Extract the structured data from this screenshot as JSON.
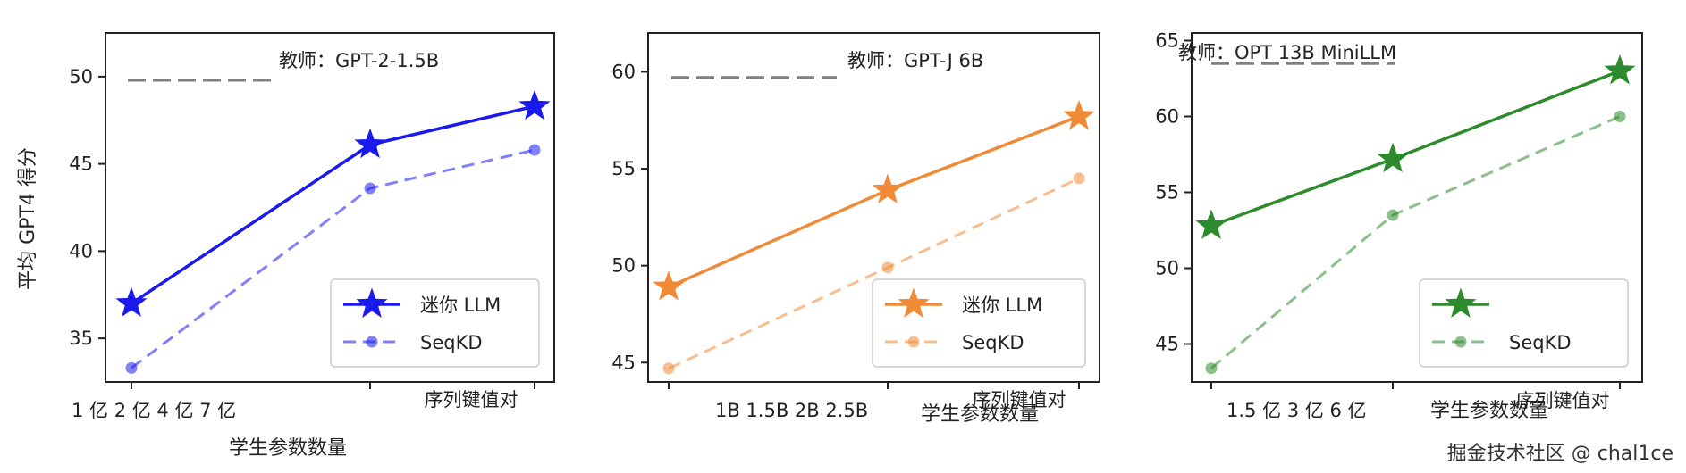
{
  "y_axis_title": "平均 GPT4 得分",
  "watermark": "掘金技术社区 @ chal1ce",
  "chart_data": [
    {
      "type": "line",
      "teacher_label": "教师：GPT-2-1.5B",
      "x_tick_labels": [
        "1 亿 2 亿 4 亿 7 亿"
      ],
      "xlabel": "学生参数数量",
      "extra_label": "序列键值对",
      "yticks": [
        35,
        40,
        45,
        50
      ],
      "ylim": [
        32.5,
        52.5
      ],
      "teacher_value": 49.8,
      "accent": "#1a1aee",
      "series": [
        {
          "name": "迷你 LLM",
          "style": "solid-star",
          "values": [
            37.0,
            46.1,
            48.3
          ]
        },
        {
          "name": "SeqKD",
          "style": "dashed-dot",
          "values": [
            33.3,
            43.6,
            45.8
          ]
        }
      ]
    },
    {
      "type": "line",
      "teacher_label": "教师：GPT-J 6B",
      "x_tick_labels": [
        "1B 1.5B 2B 2.5B"
      ],
      "xlabel": "学生参数数量",
      "extra_label": "序列键值对",
      "yticks": [
        45,
        50,
        55,
        60
      ],
      "ylim": [
        44,
        62
      ],
      "teacher_value": 59.7,
      "accent": "#f08a36",
      "series": [
        {
          "name": "迷你 LLM",
          "style": "solid-star",
          "values": [
            48.9,
            53.9,
            57.7
          ]
        },
        {
          "name": "SeqKD",
          "style": "dashed-dot",
          "values": [
            44.7,
            49.9,
            54.5
          ]
        }
      ]
    },
    {
      "type": "line",
      "teacher_label": "教师：OPT 13B MiniLLM",
      "x_tick_labels": [
        "1.5 亿 3 亿 6 亿"
      ],
      "xlabel": "学生参数数量",
      "extra_label": "序列键值对",
      "yticks": [
        45,
        50,
        55,
        60,
        65
      ],
      "ylim": [
        42.5,
        65.5
      ],
      "teacher_value": 63.5,
      "accent": "#2d8a2d",
      "series": [
        {
          "name": "",
          "style": "solid-star",
          "values": [
            52.8,
            57.2,
            63.0
          ]
        },
        {
          "name": "SeqKD",
          "style": "dashed-dot",
          "values": [
            43.4,
            53.5,
            60.0
          ]
        }
      ]
    }
  ]
}
